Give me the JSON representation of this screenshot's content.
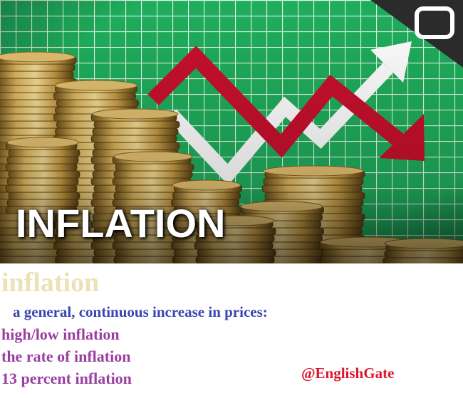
{
  "hero": {
    "title": "INFLATION",
    "grid_color": "#1aa85a",
    "arrow_down_color": "#c8102e",
    "arrow_up_color": "#ffffff",
    "coin_color": "#c9a24a",
    "logo_icon": "tv-screen-icon"
  },
  "entry": {
    "term": "inflation",
    "definition": "a general, continuous increase in prices:",
    "examples": [
      "high/low inflation",
      "the rate of inflation",
      "13 percent inflation"
    ],
    "handle": "@EnglishGate"
  },
  "colors": {
    "term": "#ebe3b5",
    "definition": "#3a46b0",
    "examples": "#9a3fa2",
    "handle": "#e0152a"
  }
}
